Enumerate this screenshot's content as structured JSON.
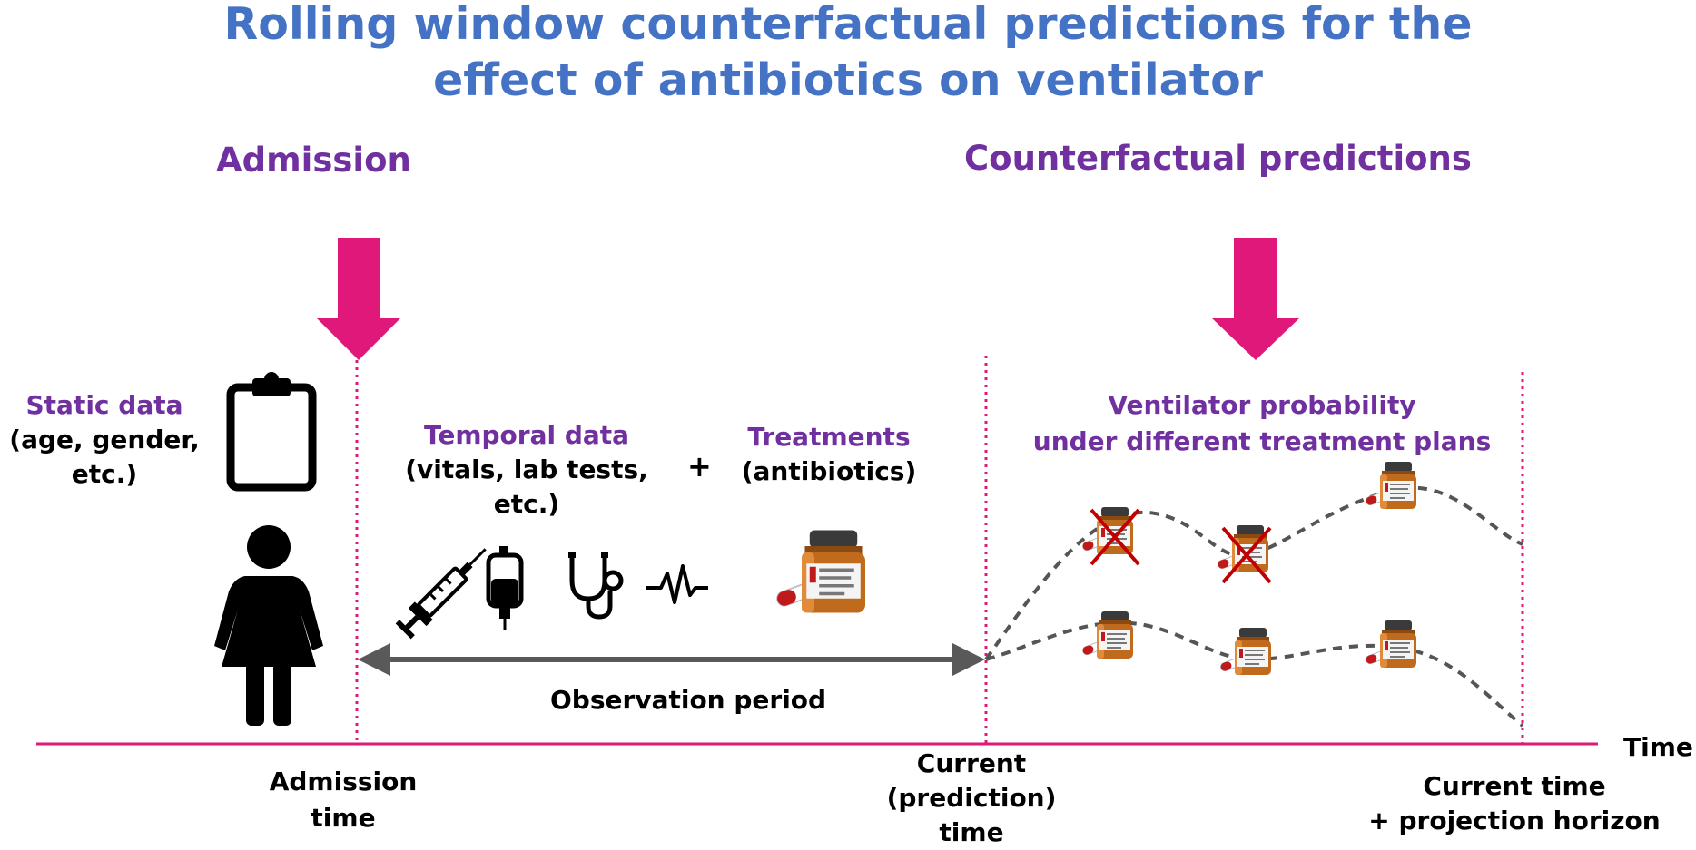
{
  "title": {
    "line1": "Rolling window counterfactual predictions for the",
    "line2": "effect of antibiotics on ventilator"
  },
  "headings": {
    "admission": "Admission",
    "counterfactual": "Counterfactual predictions"
  },
  "static_data": {
    "title": "Static data",
    "line1": "(age, gender,",
    "line2": "etc.)"
  },
  "temporal_data": {
    "title": "Temporal data",
    "line1": "(vitals, lab tests,",
    "line2": "etc.)"
  },
  "plus": "+",
  "treatments": {
    "title": "Treatments",
    "line1": "(antibiotics)"
  },
  "ventilator": {
    "line1": "Ventilator probability",
    "line2": "under different treatment plans"
  },
  "observation_period": "Observation period",
  "time_axis": {
    "label": "Time",
    "admission_time": [
      "Admission",
      "time"
    ],
    "current_time": [
      "Current",
      "(prediction)",
      "time"
    ],
    "horizon_time": [
      "Current time",
      "+ projection horizon"
    ]
  },
  "icons": [
    "clipboard-icon",
    "woman-icon",
    "syringe-icon",
    "iv-bag-icon",
    "stethoscope-icon",
    "heartbeat-icon",
    "pill-bottle-icon"
  ],
  "colors": {
    "title": "#4472C4",
    "heading": "#7030A0",
    "arrow": "#E0187A",
    "axis": "#E0187A",
    "curve": "#555555",
    "cross": "#C00000"
  }
}
